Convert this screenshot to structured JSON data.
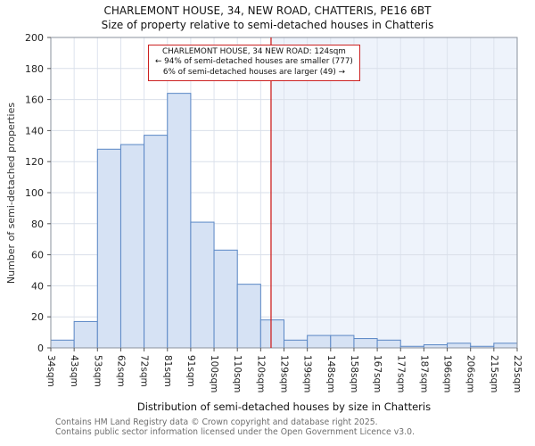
{
  "title": "CHARLEMONT HOUSE, 34, NEW ROAD, CHATTERIS, PE16 6BT",
  "subtitle": "Size of property relative to semi-detached houses in Chatteris",
  "annotation": {
    "line1": "CHARLEMONT HOUSE, 34 NEW ROAD: 124sqm",
    "line2": "← 94% of semi-detached houses are smaller (777)",
    "line3": "6% of semi-detached houses are larger (49) →"
  },
  "footer": {
    "line1": "Contains HM Land Registry data © Crown copyright and database right 2025.",
    "line2": "Contains public sector information licensed under the Open Government Licence v3.0."
  },
  "chart_data": {
    "type": "bar",
    "title": "CHARLEMONT HOUSE, 34, NEW ROAD, CHATTERIS, PE16 6BT",
    "subtitle": "Size of property relative to semi-detached houses in Chatteris",
    "xlabel": "Distribution of semi-detached houses by size in Chatteris",
    "ylabel": "Number of semi-detached properties",
    "bin_edges_sqm": [
      34,
      43,
      53,
      62,
      72,
      81,
      91,
      100,
      110,
      120,
      129,
      139,
      148,
      158,
      167,
      177,
      187,
      196,
      206,
      215,
      225
    ],
    "categories": [
      "34sqm",
      "43sqm",
      "53sqm",
      "62sqm",
      "72sqm",
      "81sqm",
      "91sqm",
      "100sqm",
      "110sqm",
      "120sqm",
      "129sqm",
      "139sqm",
      "148sqm",
      "158sqm",
      "167sqm",
      "177sqm",
      "187sqm",
      "196sqm",
      "206sqm",
      "215sqm",
      "225sqm"
    ],
    "values": [
      5,
      17,
      128,
      131,
      137,
      164,
      81,
      63,
      41,
      18,
      5,
      8,
      8,
      6,
      5,
      1,
      2,
      3,
      1,
      3
    ],
    "ylim": [
      0,
      200
    ],
    "yticks": [
      0,
      20,
      40,
      60,
      80,
      100,
      120,
      140,
      160,
      180,
      200
    ],
    "marker_value_sqm": 124,
    "marker_color": "#cc2222",
    "bar_fill": "#d6e2f4",
    "bar_stroke": "#5a87c5",
    "grid_color": "#dde3ee",
    "shade_color": "#eef3fb",
    "grid": true,
    "legend": "none"
  }
}
